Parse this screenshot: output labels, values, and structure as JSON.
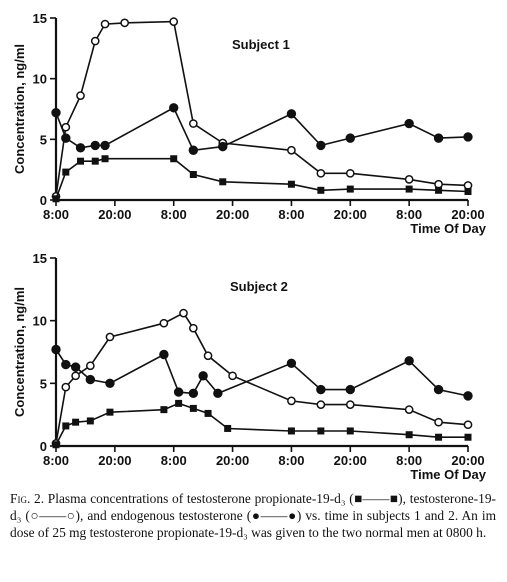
{
  "chart_data": [
    {
      "type": "line",
      "title": "Subject 1",
      "ylabel": "Concentration, ng/ml",
      "xlabel": "Time Of Day",
      "ylim": [
        0,
        15
      ],
      "yticks": [
        "0",
        "5",
        "10",
        "15"
      ],
      "xticks": [
        {
          "x": 0,
          "label": "8:00"
        },
        {
          "x": 12,
          "label": "20:00"
        },
        {
          "x": 24,
          "label": "8:00"
        },
        {
          "x": 36,
          "label": "20:00"
        },
        {
          "x": 48,
          "label": "8:00"
        },
        {
          "x": 60,
          "label": "20:00"
        },
        {
          "x": 72,
          "label": "8:00"
        },
        {
          "x": 84,
          "label": "20:00"
        }
      ],
      "grid": false,
      "series": [
        {
          "marker": "open-circle",
          "points": [
            [
              0,
              0.3
            ],
            [
              2,
              6.0
            ],
            [
              5,
              8.6
            ],
            [
              8,
              13.1
            ],
            [
              10,
              14.5
            ],
            [
              14,
              14.6
            ],
            [
              24,
              14.7
            ],
            [
              28,
              6.3
            ],
            [
              34,
              4.7
            ],
            [
              48,
              4.1
            ],
            [
              54,
              2.2
            ],
            [
              60,
              2.2
            ],
            [
              72,
              1.7
            ],
            [
              78,
              1.3
            ],
            [
              84,
              1.2
            ]
          ]
        },
        {
          "marker": "filled-circle",
          "points": [
            [
              0,
              7.2
            ],
            [
              2,
              5.1
            ],
            [
              5,
              4.3
            ],
            [
              8,
              4.5
            ],
            [
              10,
              4.5
            ],
            [
              24,
              7.6
            ],
            [
              28,
              4.1
            ],
            [
              34,
              4.4
            ],
            [
              48,
              7.1
            ],
            [
              54,
              4.5
            ],
            [
              60,
              5.1
            ],
            [
              72,
              6.3
            ],
            [
              78,
              5.1
            ],
            [
              84,
              5.2
            ]
          ]
        },
        {
          "marker": "filled-square",
          "points": [
            [
              0,
              0.1
            ],
            [
              2,
              2.3
            ],
            [
              5,
              3.2
            ],
            [
              8,
              3.2
            ],
            [
              10,
              3.4
            ],
            [
              24,
              3.4
            ],
            [
              28,
              2.1
            ],
            [
              34,
              1.5
            ],
            [
              48,
              1.3
            ],
            [
              54,
              0.8
            ],
            [
              60,
              0.9
            ],
            [
              72,
              0.9
            ],
            [
              78,
              0.8
            ],
            [
              84,
              0.7
            ]
          ]
        }
      ]
    },
    {
      "type": "line",
      "title": "Subject 2",
      "ylabel": "Concentration, ng/ml",
      "xlabel": "Time Of Day",
      "ylim": [
        0,
        15
      ],
      "yticks": [
        "0",
        "5",
        "10",
        "15"
      ],
      "xticks": [
        {
          "x": 0,
          "label": "8:00"
        },
        {
          "x": 12,
          "label": "20:00"
        },
        {
          "x": 24,
          "label": "8:00"
        },
        {
          "x": 36,
          "label": "20:00"
        },
        {
          "x": 48,
          "label": "8:00"
        },
        {
          "x": 60,
          "label": "20:00"
        },
        {
          "x": 72,
          "label": "8:00"
        },
        {
          "x": 84,
          "label": "20:00"
        }
      ],
      "grid": false,
      "series": [
        {
          "marker": "open-circle",
          "points": [
            [
              0,
              0.2
            ],
            [
              2,
              4.7
            ],
            [
              4,
              5.6
            ],
            [
              7,
              6.4
            ],
            [
              11,
              8.7
            ],
            [
              22,
              9.8
            ],
            [
              26,
              10.6
            ],
            [
              28,
              9.4
            ],
            [
              31,
              7.2
            ],
            [
              36,
              5.6
            ],
            [
              48,
              3.6
            ],
            [
              54,
              3.3
            ],
            [
              60,
              3.3
            ],
            [
              72,
              2.9
            ],
            [
              78,
              1.9
            ],
            [
              84,
              1.7
            ]
          ]
        },
        {
          "marker": "filled-circle",
          "points": [
            [
              0,
              7.7
            ],
            [
              2,
              6.5
            ],
            [
              4,
              6.3
            ],
            [
              7,
              5.3
            ],
            [
              11,
              5.0
            ],
            [
              22,
              7.3
            ],
            [
              25,
              4.3
            ],
            [
              28,
              4.2
            ],
            [
              30,
              5.6
            ],
            [
              33,
              4.2
            ],
            [
              48,
              6.6
            ],
            [
              54,
              4.5
            ],
            [
              60,
              4.5
            ],
            [
              72,
              6.8
            ],
            [
              78,
              4.5
            ],
            [
              84,
              4.0
            ]
          ]
        },
        {
          "marker": "filled-square",
          "points": [
            [
              0,
              0.1
            ],
            [
              2,
              1.6
            ],
            [
              4,
              1.9
            ],
            [
              7,
              2.0
            ],
            [
              11,
              2.7
            ],
            [
              22,
              2.9
            ],
            [
              25,
              3.4
            ],
            [
              28,
              3.0
            ],
            [
              31,
              2.6
            ],
            [
              35,
              1.4
            ],
            [
              48,
              1.2
            ],
            [
              54,
              1.2
            ],
            [
              60,
              1.2
            ],
            [
              72,
              0.9
            ],
            [
              78,
              0.7
            ],
            [
              84,
              0.7
            ]
          ]
        }
      ]
    }
  ],
  "caption": {
    "fig_label": "Fig. 2.",
    "text": "Plasma concentrations of testosterone propionate-19-d₃ (■——■), testosterone-19-d₃ (○——○), and endogenous testosterone (●——●) vs. time in subjects 1 and 2. An im dose of 25 mg testosterone propionate-19-d₃ was given to the two normal men at 0800 h."
  }
}
